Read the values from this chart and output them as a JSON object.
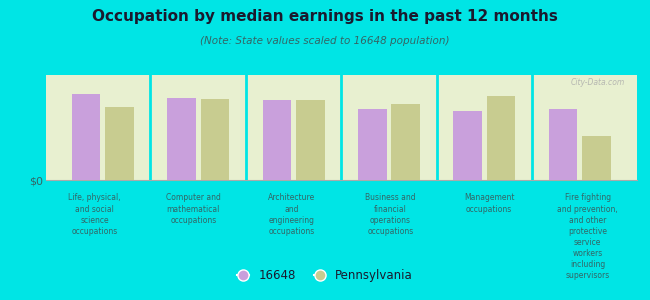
{
  "title": "Occupation by median earnings in the past 12 months",
  "subtitle": "(Note: State values scaled to 16648 population)",
  "background_color": "#00e5e5",
  "plot_bg_top": "#e8f0d0",
  "plot_bg_bottom": "#f0f8e0",
  "bar_color_1": "#c9a0dc",
  "bar_color_2": "#c8cc90",
  "watermark": "City-Data.com",
  "categories": [
    "Life, physical,\nand social\nscience\noccupations",
    "Computer and\nmathematical\noccupations",
    "Architecture\nand\nengineering\noccupations",
    "Business and\nfinancial\noperations\noccupations",
    "Management\noccupations",
    "Fire fighting\nand prevention,\nand other\nprotective\nservice\nworkers\nincluding\nsupervisors"
  ],
  "values_16648": [
    0.82,
    0.78,
    0.76,
    0.68,
    0.66,
    0.68
  ],
  "values_pa": [
    0.7,
    0.77,
    0.76,
    0.72,
    0.8,
    0.42
  ],
  "ylabel": "$0",
  "legend_labels": [
    "16648",
    "Pennsylvania"
  ],
  "ylim": [
    0,
    1.0
  ],
  "title_color": "#1a1a2e",
  "subtitle_color": "#336666",
  "label_color": "#336666"
}
